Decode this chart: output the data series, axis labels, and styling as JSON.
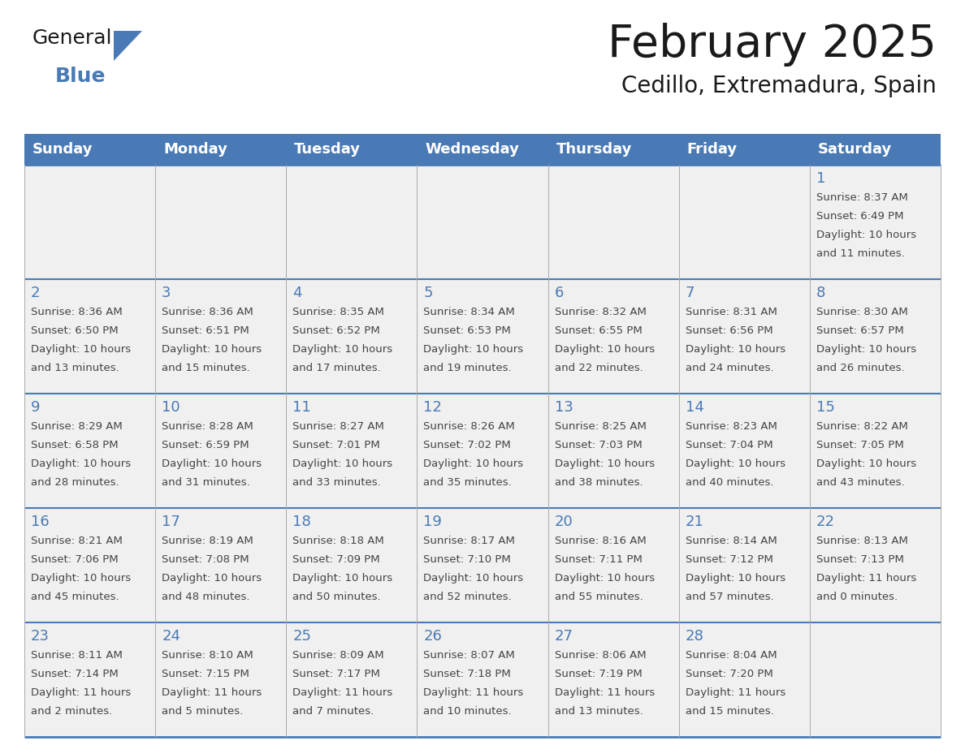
{
  "title": "February 2025",
  "subtitle": "Cedillo, Extremadura, Spain",
  "days_of_week": [
    "Sunday",
    "Monday",
    "Tuesday",
    "Wednesday",
    "Thursday",
    "Friday",
    "Saturday"
  ],
  "header_bg": "#4a7ab5",
  "header_text": "#ffffff",
  "row_bg": "#f0f0f0",
  "day_number_color": "#4a7ab5",
  "cell_text_color": "#444444",
  "border_color": "#4a7ab5",
  "line_color": "#aaaaaa",
  "logo_general_color": "#1a1a1a",
  "logo_blue_color": "#4a7ab5",
  "logo_triangle_color": "#4a7ab5",
  "title_color": "#1a1a1a",
  "subtitle_color": "#1a1a1a",
  "calendar_data": [
    {
      "day": 1,
      "col": 6,
      "row": 0,
      "sunrise": "8:37 AM",
      "sunset": "6:49 PM",
      "daylight": "10 hours and 11 minutes."
    },
    {
      "day": 2,
      "col": 0,
      "row": 1,
      "sunrise": "8:36 AM",
      "sunset": "6:50 PM",
      "daylight": "10 hours and 13 minutes."
    },
    {
      "day": 3,
      "col": 1,
      "row": 1,
      "sunrise": "8:36 AM",
      "sunset": "6:51 PM",
      "daylight": "10 hours and 15 minutes."
    },
    {
      "day": 4,
      "col": 2,
      "row": 1,
      "sunrise": "8:35 AM",
      "sunset": "6:52 PM",
      "daylight": "10 hours and 17 minutes."
    },
    {
      "day": 5,
      "col": 3,
      "row": 1,
      "sunrise": "8:34 AM",
      "sunset": "6:53 PM",
      "daylight": "10 hours and 19 minutes."
    },
    {
      "day": 6,
      "col": 4,
      "row": 1,
      "sunrise": "8:32 AM",
      "sunset": "6:55 PM",
      "daylight": "10 hours and 22 minutes."
    },
    {
      "day": 7,
      "col": 5,
      "row": 1,
      "sunrise": "8:31 AM",
      "sunset": "6:56 PM",
      "daylight": "10 hours and 24 minutes."
    },
    {
      "day": 8,
      "col": 6,
      "row": 1,
      "sunrise": "8:30 AM",
      "sunset": "6:57 PM",
      "daylight": "10 hours and 26 minutes."
    },
    {
      "day": 9,
      "col": 0,
      "row": 2,
      "sunrise": "8:29 AM",
      "sunset": "6:58 PM",
      "daylight": "10 hours and 28 minutes."
    },
    {
      "day": 10,
      "col": 1,
      "row": 2,
      "sunrise": "8:28 AM",
      "sunset": "6:59 PM",
      "daylight": "10 hours and 31 minutes."
    },
    {
      "day": 11,
      "col": 2,
      "row": 2,
      "sunrise": "8:27 AM",
      "sunset": "7:01 PM",
      "daylight": "10 hours and 33 minutes."
    },
    {
      "day": 12,
      "col": 3,
      "row": 2,
      "sunrise": "8:26 AM",
      "sunset": "7:02 PM",
      "daylight": "10 hours and 35 minutes."
    },
    {
      "day": 13,
      "col": 4,
      "row": 2,
      "sunrise": "8:25 AM",
      "sunset": "7:03 PM",
      "daylight": "10 hours and 38 minutes."
    },
    {
      "day": 14,
      "col": 5,
      "row": 2,
      "sunrise": "8:23 AM",
      "sunset": "7:04 PM",
      "daylight": "10 hours and 40 minutes."
    },
    {
      "day": 15,
      "col": 6,
      "row": 2,
      "sunrise": "8:22 AM",
      "sunset": "7:05 PM",
      "daylight": "10 hours and 43 minutes."
    },
    {
      "day": 16,
      "col": 0,
      "row": 3,
      "sunrise": "8:21 AM",
      "sunset": "7:06 PM",
      "daylight": "10 hours and 45 minutes."
    },
    {
      "day": 17,
      "col": 1,
      "row": 3,
      "sunrise": "8:19 AM",
      "sunset": "7:08 PM",
      "daylight": "10 hours and 48 minutes."
    },
    {
      "day": 18,
      "col": 2,
      "row": 3,
      "sunrise": "8:18 AM",
      "sunset": "7:09 PM",
      "daylight": "10 hours and 50 minutes."
    },
    {
      "day": 19,
      "col": 3,
      "row": 3,
      "sunrise": "8:17 AM",
      "sunset": "7:10 PM",
      "daylight": "10 hours and 52 minutes."
    },
    {
      "day": 20,
      "col": 4,
      "row": 3,
      "sunrise": "8:16 AM",
      "sunset": "7:11 PM",
      "daylight": "10 hours and 55 minutes."
    },
    {
      "day": 21,
      "col": 5,
      "row": 3,
      "sunrise": "8:14 AM",
      "sunset": "7:12 PM",
      "daylight": "10 hours and 57 minutes."
    },
    {
      "day": 22,
      "col": 6,
      "row": 3,
      "sunrise": "8:13 AM",
      "sunset": "7:13 PM",
      "daylight": "11 hours and 0 minutes."
    },
    {
      "day": 23,
      "col": 0,
      "row": 4,
      "sunrise": "8:11 AM",
      "sunset": "7:14 PM",
      "daylight": "11 hours and 2 minutes."
    },
    {
      "day": 24,
      "col": 1,
      "row": 4,
      "sunrise": "8:10 AM",
      "sunset": "7:15 PM",
      "daylight": "11 hours and 5 minutes."
    },
    {
      "day": 25,
      "col": 2,
      "row": 4,
      "sunrise": "8:09 AM",
      "sunset": "7:17 PM",
      "daylight": "11 hours and 7 minutes."
    },
    {
      "day": 26,
      "col": 3,
      "row": 4,
      "sunrise": "8:07 AM",
      "sunset": "7:18 PM",
      "daylight": "11 hours and 10 minutes."
    },
    {
      "day": 27,
      "col": 4,
      "row": 4,
      "sunrise": "8:06 AM",
      "sunset": "7:19 PM",
      "daylight": "11 hours and 13 minutes."
    },
    {
      "day": 28,
      "col": 5,
      "row": 4,
      "sunrise": "8:04 AM",
      "sunset": "7:20 PM",
      "daylight": "11 hours and 15 minutes."
    }
  ]
}
